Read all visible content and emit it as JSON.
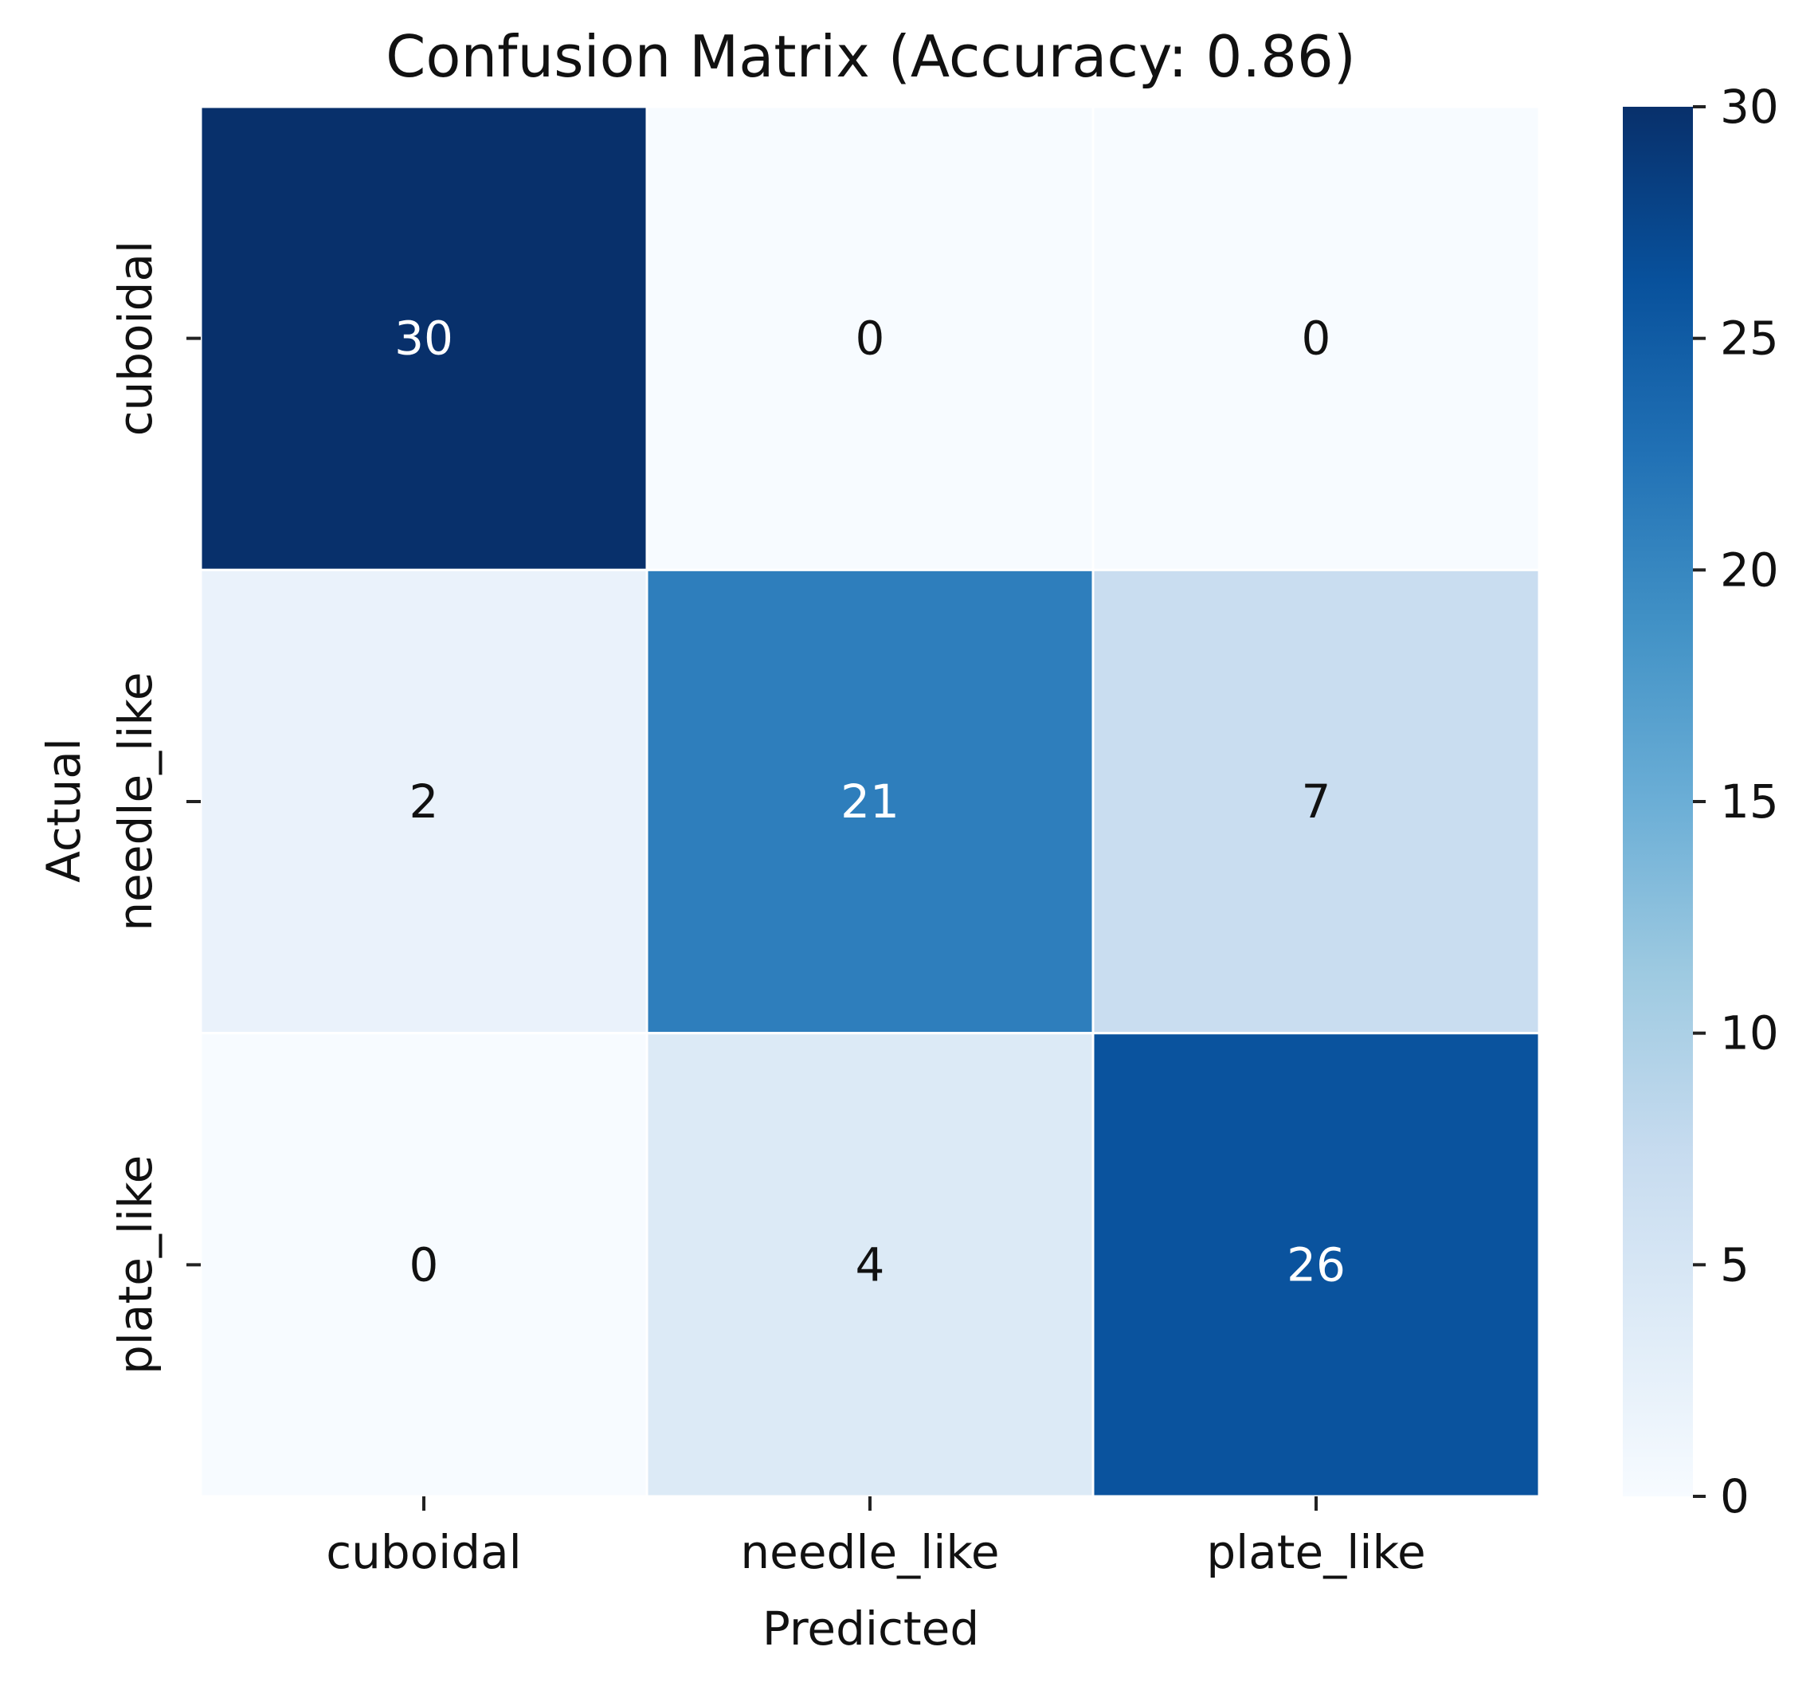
{
  "chart_data": {
    "type": "heatmap",
    "title": "Confusion Matrix (Accuracy: 0.86)",
    "xlabel": "Predicted",
    "ylabel": "Actual",
    "x_categories": [
      "cuboidal",
      "needle_like",
      "plate_like"
    ],
    "y_categories": [
      "cuboidal",
      "needle_like",
      "plate_like"
    ],
    "values": [
      [
        30,
        0,
        0
      ],
      [
        2,
        21,
        7
      ],
      [
        0,
        4,
        26
      ]
    ],
    "colormap": "Blues",
    "vmin": 0,
    "vmax": 30,
    "colorbar_ticks": [
      0,
      5,
      10,
      15,
      20,
      25,
      30
    ],
    "colors": {
      "low": "#f7fbff",
      "high": "#08306b",
      "text_dark": "#111111",
      "text_light": "#ffffff"
    }
  }
}
